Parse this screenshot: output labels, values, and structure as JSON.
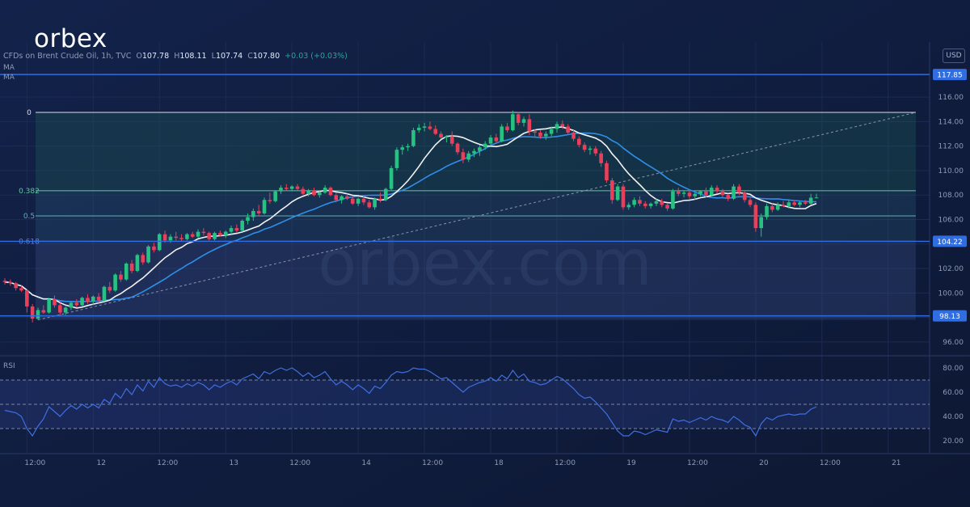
{
  "brand": {
    "logo_text": "orbex",
    "watermark": "orbex.com"
  },
  "header": {
    "symbol": "CFDs on Brent Crude Oil, 1h, TVC",
    "o_label": "O",
    "o": "107.78",
    "h_label": "H",
    "h": "108.11",
    "l_label": "L",
    "l": "107.74",
    "c_label": "C",
    "c": "107.80",
    "change": "+0.03 (+0.03%)"
  },
  "indicators": [
    "MA",
    "MA"
  ],
  "currency": "USD",
  "rsi_label": "RSI",
  "colors": {
    "background": "#0f1c3a",
    "up": "#26c281",
    "down": "#e8405a",
    "ma_fast": "#f2f2f2",
    "ma_slow": "#2f8fe8",
    "level_line": "#2f6de0",
    "rsi": "#3f6fe0"
  },
  "chart_data": [
    {
      "type": "candlestick",
      "y_range": [
        95.0,
        120.5
      ],
      "y_ticks": [
        96.0,
        98.0,
        100.0,
        102.0,
        104.0,
        106.0,
        108.0,
        110.0,
        112.0,
        114.0,
        116.0
      ],
      "y_tick_labels": [
        "96.00",
        "98.00",
        "100.00",
        "102.00",
        "104.00",
        "106.00",
        "108.00",
        "110.00",
        "112.00",
        "114.00",
        "116.00"
      ],
      "x_tick_labels": [
        {
          "label": "12:00",
          "bar": 4
        },
        {
          "label": "12",
          "bar": 16
        },
        {
          "label": "12:00",
          "bar": 28
        },
        {
          "label": "13",
          "bar": 40
        },
        {
          "label": "12:00",
          "bar": 52
        },
        {
          "label": "14",
          "bar": 64
        },
        {
          "label": "12:00",
          "bar": 76
        },
        {
          "label": "18",
          "bar": 88
        },
        {
          "label": "12:00",
          "bar": 100
        },
        {
          "label": "19",
          "bar": 112
        },
        {
          "label": "12:00",
          "bar": 124
        },
        {
          "label": "20",
          "bar": 136
        },
        {
          "label": "12:00",
          "bar": 148
        },
        {
          "label": "21",
          "bar": 160
        }
      ],
      "fib_levels": [
        {
          "label": "0",
          "value": 114.75
        },
        {
          "label": "0.382",
          "value": 108.35
        },
        {
          "label": "0.5",
          "value": 106.3
        },
        {
          "label": "0.618",
          "value": 104.22
        }
      ],
      "price_lines": [
        {
          "label": "117.85",
          "value": 117.85
        },
        {
          "label": "104.22",
          "value": 104.22
        },
        {
          "label": "98.13",
          "value": 98.13
        }
      ],
      "fib_box": {
        "bar_start": 6,
        "bar_end": 165,
        "top": 114.75,
        "bottom": 97.8
      },
      "trend_line": {
        "bar_start": 6,
        "value_start": 97.8,
        "bar_end": 165,
        "value_end": 114.75
      },
      "candles": [
        [
          101.0,
          101.2,
          100.7,
          100.9
        ],
        [
          100.9,
          101.1,
          100.6,
          100.8
        ],
        [
          100.8,
          100.9,
          100.2,
          100.4
        ],
        [
          100.4,
          100.6,
          100.1,
          100.2
        ],
        [
          100.2,
          100.3,
          98.4,
          98.9
        ],
        [
          98.9,
          99.1,
          97.6,
          97.9
        ],
        [
          97.9,
          98.8,
          97.8,
          98.6
        ],
        [
          98.6,
          99.0,
          98.3,
          98.4
        ],
        [
          98.4,
          99.6,
          98.3,
          99.5
        ],
        [
          99.5,
          99.8,
          98.8,
          99.0
        ],
        [
          99.0,
          99.2,
          98.1,
          98.4
        ],
        [
          98.4,
          98.9,
          98.2,
          98.8
        ],
        [
          98.8,
          99.3,
          98.6,
          99.2
        ],
        [
          99.2,
          99.5,
          98.8,
          99.0
        ],
        [
          99.0,
          99.7,
          98.9,
          99.6
        ],
        [
          99.6,
          99.9,
          99.1,
          99.3
        ],
        [
          99.3,
          99.8,
          99.0,
          99.7
        ],
        [
          99.7,
          100.0,
          99.2,
          99.4
        ],
        [
          99.4,
          100.6,
          99.3,
          100.5
        ],
        [
          100.5,
          100.9,
          100.0,
          100.2
        ],
        [
          100.2,
          101.6,
          100.1,
          101.5
        ],
        [
          101.5,
          101.8,
          100.9,
          101.1
        ],
        [
          101.1,
          102.5,
          101.0,
          102.4
        ],
        [
          102.4,
          102.7,
          101.6,
          101.8
        ],
        [
          101.8,
          103.2,
          101.7,
          103.1
        ],
        [
          103.1,
          103.3,
          102.3,
          102.5
        ],
        [
          102.5,
          103.9,
          102.4,
          103.8
        ],
        [
          103.8,
          104.1,
          103.3,
          103.5
        ],
        [
          103.5,
          104.9,
          103.4,
          104.8
        ],
        [
          104.8,
          105.1,
          104.1,
          104.3
        ],
        [
          104.3,
          104.8,
          104.1,
          104.6
        ],
        [
          104.6,
          105.0,
          104.3,
          104.5
        ],
        [
          104.5,
          104.8,
          104.2,
          104.4
        ],
        [
          104.4,
          104.9,
          104.3,
          104.8
        ],
        [
          104.8,
          105.0,
          104.5,
          104.6
        ],
        [
          104.6,
          105.2,
          104.5,
          105.0
        ],
        [
          105.0,
          105.3,
          104.7,
          104.9
        ],
        [
          104.9,
          105.0,
          104.3,
          104.4
        ],
        [
          104.4,
          105.0,
          104.3,
          104.9
        ],
        [
          104.9,
          105.1,
          104.6,
          104.7
        ],
        [
          104.7,
          105.1,
          104.5,
          105.0
        ],
        [
          105.0,
          105.5,
          104.8,
          105.3
        ],
        [
          105.3,
          105.6,
          104.9,
          105.1
        ],
        [
          105.1,
          106.0,
          105.0,
          105.9
        ],
        [
          105.9,
          106.5,
          105.6,
          106.2
        ],
        [
          106.2,
          106.9,
          105.9,
          106.7
        ],
        [
          106.7,
          107.2,
          106.3,
          106.5
        ],
        [
          106.5,
          107.8,
          106.4,
          107.6
        ],
        [
          107.6,
          108.2,
          107.3,
          107.5
        ],
        [
          107.5,
          108.4,
          107.4,
          108.3
        ],
        [
          108.3,
          108.8,
          108.1,
          108.6
        ],
        [
          108.6,
          108.9,
          108.4,
          108.5
        ],
        [
          108.5,
          108.8,
          108.3,
          108.7
        ],
        [
          108.7,
          108.9,
          108.4,
          108.5
        ],
        [
          108.5,
          108.7,
          108.0,
          108.1
        ],
        [
          108.1,
          108.5,
          107.9,
          108.4
        ],
        [
          108.4,
          108.6,
          107.9,
          108.0
        ],
        [
          108.0,
          108.3,
          107.8,
          108.2
        ],
        [
          108.2,
          108.8,
          108.1,
          108.6
        ],
        [
          108.6,
          108.7,
          107.9,
          108.0
        ],
        [
          108.0,
          108.2,
          107.4,
          107.6
        ],
        [
          107.6,
          108.0,
          107.3,
          107.9
        ],
        [
          107.9,
          108.1,
          107.6,
          107.7
        ],
        [
          107.7,
          107.9,
          107.2,
          107.3
        ],
        [
          107.3,
          107.8,
          107.1,
          107.7
        ],
        [
          107.7,
          107.9,
          107.2,
          107.4
        ],
        [
          107.4,
          107.6,
          106.9,
          107.0
        ],
        [
          107.0,
          107.8,
          106.8,
          107.7
        ],
        [
          107.7,
          108.2,
          107.4,
          107.6
        ],
        [
          107.6,
          108.6,
          107.5,
          108.5
        ],
        [
          108.5,
          110.4,
          108.4,
          110.2
        ],
        [
          110.2,
          111.9,
          110.0,
          111.7
        ],
        [
          111.7,
          112.1,
          111.3,
          111.9
        ],
        [
          111.9,
          112.2,
          111.6,
          112.0
        ],
        [
          112.0,
          113.5,
          111.9,
          113.3
        ],
        [
          113.3,
          113.8,
          113.1,
          113.5
        ],
        [
          113.5,
          113.9,
          113.2,
          113.6
        ],
        [
          113.6,
          114.0,
          113.3,
          113.4
        ],
        [
          113.4,
          113.7,
          112.9,
          113.0
        ],
        [
          113.0,
          113.2,
          112.6,
          112.7
        ],
        [
          112.7,
          112.9,
          112.3,
          112.8
        ],
        [
          112.8,
          113.2,
          112.0,
          112.2
        ],
        [
          112.2,
          112.3,
          111.3,
          111.5
        ],
        [
          111.5,
          111.8,
          110.6,
          110.9
        ],
        [
          110.9,
          111.6,
          110.7,
          111.4
        ],
        [
          111.4,
          111.8,
          111.1,
          111.6
        ],
        [
          111.6,
          112.1,
          111.2,
          111.9
        ],
        [
          111.9,
          112.4,
          111.7,
          112.2
        ],
        [
          112.2,
          112.9,
          112.0,
          112.7
        ],
        [
          112.7,
          113.0,
          112.2,
          112.4
        ],
        [
          112.4,
          113.8,
          112.3,
          113.6
        ],
        [
          113.6,
          113.9,
          113.1,
          113.3
        ],
        [
          113.3,
          114.9,
          113.2,
          114.6
        ],
        [
          114.6,
          114.8,
          113.7,
          113.9
        ],
        [
          113.9,
          114.4,
          113.6,
          114.2
        ],
        [
          114.2,
          114.6,
          112.9,
          113.2
        ],
        [
          113.2,
          113.4,
          112.7,
          113.1
        ],
        [
          113.1,
          113.3,
          112.6,
          112.8
        ],
        [
          112.8,
          113.2,
          112.5,
          113.0
        ],
        [
          113.0,
          113.6,
          112.8,
          113.4
        ],
        [
          113.4,
          114.0,
          113.1,
          113.8
        ],
        [
          113.8,
          114.1,
          113.4,
          113.6
        ],
        [
          113.6,
          113.8,
          113.0,
          113.1
        ],
        [
          113.1,
          113.3,
          112.4,
          112.6
        ],
        [
          112.6,
          112.8,
          111.9,
          112.1
        ],
        [
          112.1,
          112.3,
          111.5,
          111.7
        ],
        [
          111.7,
          112.0,
          111.3,
          111.8
        ],
        [
          111.8,
          112.0,
          111.2,
          111.4
        ],
        [
          111.4,
          111.6,
          110.3,
          110.6
        ],
        [
          110.6,
          110.8,
          109.0,
          109.2
        ],
        [
          109.2,
          109.4,
          107.3,
          107.6
        ],
        [
          107.6,
          108.9,
          107.5,
          108.7
        ],
        [
          108.7,
          108.9,
          106.8,
          107.0
        ],
        [
          107.0,
          107.4,
          106.8,
          107.2
        ],
        [
          107.2,
          107.8,
          107.0,
          107.6
        ],
        [
          107.6,
          107.9,
          107.1,
          107.3
        ],
        [
          107.3,
          107.5,
          106.9,
          107.1
        ],
        [
          107.1,
          107.4,
          106.9,
          107.3
        ],
        [
          107.3,
          107.7,
          107.1,
          107.5
        ],
        [
          107.5,
          107.7,
          107.0,
          107.2
        ],
        [
          107.2,
          107.3,
          106.7,
          106.9
        ],
        [
          106.9,
          108.5,
          106.8,
          108.3
        ],
        [
          108.3,
          108.6,
          107.9,
          108.1
        ],
        [
          108.1,
          108.4,
          107.8,
          108.2
        ],
        [
          108.2,
          108.4,
          107.7,
          107.9
        ],
        [
          107.9,
          108.2,
          107.6,
          108.1
        ],
        [
          108.1,
          108.4,
          107.9,
          108.3
        ],
        [
          108.3,
          108.6,
          107.8,
          108.0
        ],
        [
          108.0,
          108.8,
          107.9,
          108.6
        ],
        [
          108.6,
          108.8,
          108.1,
          108.3
        ],
        [
          108.3,
          108.5,
          107.8,
          108.0
        ],
        [
          108.0,
          108.1,
          107.5,
          107.7
        ],
        [
          107.7,
          108.9,
          107.6,
          108.7
        ],
        [
          108.7,
          108.9,
          108.0,
          108.2
        ],
        [
          108.2,
          108.4,
          107.4,
          107.6
        ],
        [
          107.6,
          107.8,
          107.0,
          107.2
        ],
        [
          107.2,
          107.4,
          105.0,
          105.3
        ],
        [
          105.3,
          106.5,
          104.6,
          106.2
        ],
        [
          106.2,
          107.3,
          106.0,
          107.1
        ],
        [
          107.1,
          107.3,
          106.6,
          106.8
        ],
        [
          106.8,
          107.4,
          106.7,
          107.2
        ],
        [
          107.2,
          107.5,
          107.0,
          107.1
        ],
        [
          107.1,
          107.6,
          106.9,
          107.4
        ],
        [
          107.4,
          107.6,
          107.1,
          107.2
        ],
        [
          107.2,
          107.5,
          107.0,
          107.4
        ],
        [
          107.4,
          107.6,
          107.2,
          107.3
        ],
        [
          107.3,
          108.1,
          107.2,
          107.78
        ],
        [
          107.78,
          108.11,
          107.74,
          107.8
        ]
      ]
    },
    {
      "type": "line",
      "name": "RSI",
      "y_range": [
        10,
        90
      ],
      "y_ticks": [
        20,
        40,
        60,
        80
      ],
      "y_tick_labels": [
        "20.00",
        "40.00",
        "60.00",
        "80.00"
      ],
      "bands": [
        30,
        50,
        70
      ],
      "values": [
        45,
        44,
        43,
        40,
        30,
        24,
        32,
        38,
        48,
        44,
        40,
        45,
        49,
        46,
        50,
        47,
        50,
        47,
        54,
        51,
        59,
        55,
        63,
        58,
        66,
        61,
        69,
        64,
        72,
        67,
        65,
        66,
        64,
        67,
        65,
        68,
        66,
        62,
        66,
        64,
        67,
        69,
        66,
        71,
        73,
        75,
        71,
        77,
        75,
        78,
        80,
        78,
        80,
        77,
        73,
        76,
        72,
        74,
        77,
        71,
        66,
        69,
        66,
        62,
        66,
        63,
        59,
        65,
        63,
        68,
        74,
        77,
        76,
        77,
        80,
        79,
        79,
        77,
        74,
        71,
        72,
        68,
        64,
        60,
        64,
        66,
        68,
        69,
        72,
        69,
        74,
        71,
        78,
        72,
        75,
        69,
        68,
        66,
        67,
        70,
        73,
        71,
        67,
        63,
        58,
        55,
        56,
        52,
        47,
        42,
        35,
        28,
        24,
        24,
        28,
        27,
        25,
        27,
        29,
        28,
        27,
        38,
        36,
        37,
        35,
        37,
        39,
        37,
        40,
        38,
        37,
        35,
        40,
        37,
        33,
        31,
        24,
        34,
        39,
        37,
        40,
        41,
        42,
        41,
        42,
        42,
        46,
        48
      ]
    }
  ]
}
